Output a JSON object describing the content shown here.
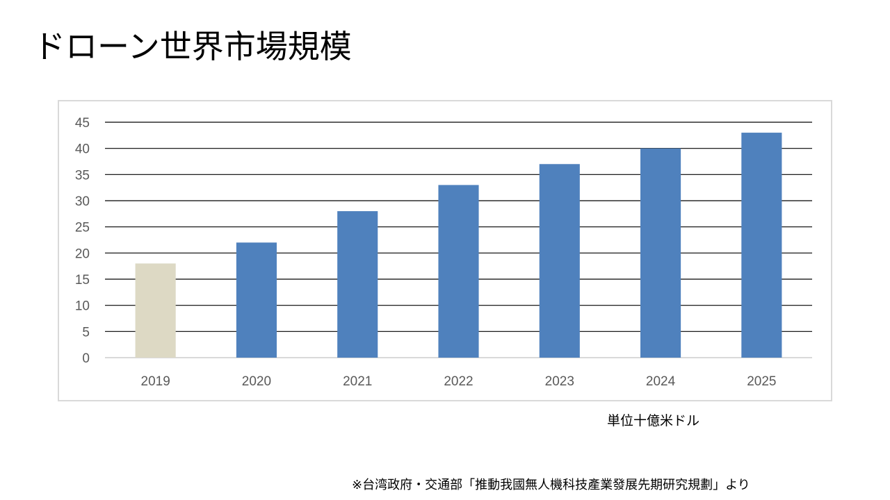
{
  "slide": {
    "title": "ドローン世界市場規模",
    "unit_note": "単位十億米ドル",
    "source_note": "※台湾政府・交通部「推動我國無人機科技產業發展先期研究規劃」より"
  },
  "chart_data": {
    "type": "bar",
    "title": "",
    "xlabel": "",
    "ylabel": "",
    "categories": [
      "2019",
      "2020",
      "2021",
      "2022",
      "2023",
      "2024",
      "2025"
    ],
    "values": [
      18,
      22,
      28,
      33,
      37,
      40,
      43
    ],
    "bar_colors": [
      "#ddd9c4",
      "#4f81bd",
      "#4f81bd",
      "#4f81bd",
      "#4f81bd",
      "#4f81bd",
      "#4f81bd"
    ],
    "ylim": [
      0,
      45
    ],
    "yticks": [
      0,
      5,
      10,
      15,
      20,
      25,
      30,
      35,
      40,
      45
    ],
    "grid": true,
    "legend": "none"
  },
  "colors": {
    "gridline": "#000000",
    "axis_label": "#595959",
    "frame_border": "#d9d9d9"
  }
}
